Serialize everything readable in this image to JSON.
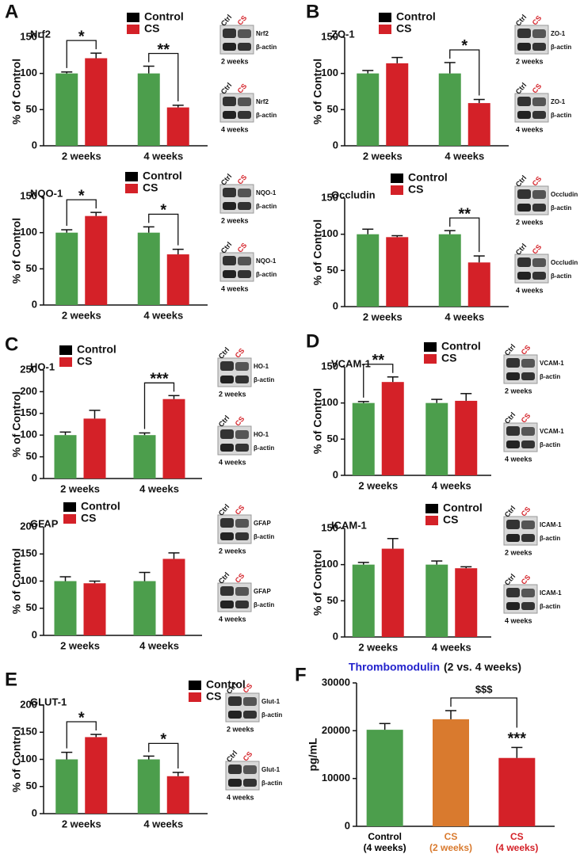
{
  "chart_data": [
    {
      "type": "bar",
      "panel": "A",
      "title": "Nrf2",
      "ylabel": "% of Control",
      "categories": [
        "2 weeks",
        "4 weeks"
      ],
      "series": [
        {
          "name": "Control",
          "color": "#4c9e4c",
          "legend_color": "#000000",
          "values": [
            100,
            100
          ],
          "errors": [
            2,
            10
          ]
        },
        {
          "name": "CS",
          "color": "#d42128",
          "legend_color": "#d42128",
          "values": [
            121,
            53
          ],
          "errors": [
            7,
            3
          ]
        }
      ],
      "ylim": [
        0,
        150
      ],
      "yticks": [
        0,
        50,
        100,
        150
      ],
      "annotations": [
        {
          "text": "*",
          "category": 0
        },
        {
          "text": "**",
          "category": 1
        }
      ],
      "blots": [
        {
          "ctrl": "Ctrl",
          "cs": "CS",
          "protein": "Nrf2",
          "loading": "β-actin",
          "period": "2 weeks"
        },
        {
          "ctrl": "Ctrl",
          "cs": "CS",
          "protein": "Nrf2",
          "loading": "β-actin",
          "period": "4 weeks"
        }
      ]
    },
    {
      "type": "bar",
      "title": "NQO-1",
      "ylabel": "% of Control",
      "categories": [
        "2 weeks",
        "4 weeks"
      ],
      "series": [
        {
          "name": "Control",
          "color": "#4c9e4c",
          "legend_color": "#000000",
          "values": [
            100,
            100
          ],
          "errors": [
            4,
            8
          ]
        },
        {
          "name": "CS",
          "color": "#d42128",
          "legend_color": "#d42128",
          "values": [
            123,
            70
          ],
          "errors": [
            5,
            7
          ]
        }
      ],
      "ylim": [
        0,
        150
      ],
      "yticks": [
        0,
        50,
        100,
        150
      ],
      "annotations": [
        {
          "text": "*",
          "category": 0
        },
        {
          "text": "*",
          "category": 1
        }
      ],
      "blots": [
        {
          "ctrl": "Ctrl",
          "cs": "CS",
          "protein": "NQO-1",
          "loading": "β-actin",
          "period": "2 weeks"
        },
        {
          "ctrl": "Ctrl",
          "cs": "CS",
          "protein": "NQO-1",
          "loading": "β-actin",
          "period": "4 weeks"
        }
      ]
    },
    {
      "type": "bar",
      "panel": "B",
      "title": "ZO-1",
      "ylabel": "% of Control",
      "categories": [
        "2 weeks",
        "4 weeks"
      ],
      "series": [
        {
          "name": "Control",
          "color": "#4c9e4c",
          "legend_color": "#000000",
          "values": [
            100,
            100
          ],
          "errors": [
            4,
            15
          ]
        },
        {
          "name": "CS",
          "color": "#d42128",
          "legend_color": "#d42128",
          "values": [
            114,
            59
          ],
          "errors": [
            8,
            5
          ]
        }
      ],
      "ylim": [
        0,
        150
      ],
      "yticks": [
        0,
        50,
        100,
        150
      ],
      "annotations": [
        {
          "text": "*",
          "category": 1
        }
      ],
      "blots": [
        {
          "ctrl": "Ctrl",
          "cs": "CS",
          "protein": "ZO-1",
          "loading": "β-actin",
          "period": "2 weeks"
        },
        {
          "ctrl": "Ctrl",
          "cs": "CS",
          "protein": "ZO-1",
          "loading": "β-actin",
          "period": "4 weeks"
        }
      ]
    },
    {
      "type": "bar",
      "title": "Occludin",
      "ylabel": "% of Control",
      "categories": [
        "2 weeks",
        "4 weeks"
      ],
      "series": [
        {
          "name": "Control",
          "color": "#4c9e4c",
          "legend_color": "#000000",
          "values": [
            100,
            100
          ],
          "errors": [
            7,
            5
          ]
        },
        {
          "name": "CS",
          "color": "#d42128",
          "legend_color": "#d42128",
          "values": [
            96,
            61
          ],
          "errors": [
            2,
            9
          ]
        }
      ],
      "ylim": [
        0,
        150
      ],
      "yticks": [
        0,
        50,
        100,
        150
      ],
      "annotations": [
        {
          "text": "**",
          "category": 1
        }
      ],
      "blots": [
        {
          "ctrl": "Ctrl",
          "cs": "CS",
          "protein": "Occludin",
          "loading": "β-actin",
          "period": "2 weeks"
        },
        {
          "ctrl": "Ctrl",
          "cs": "CS",
          "protein": "Occludin",
          "loading": "β-actin",
          "period": "4 weeks"
        }
      ]
    },
    {
      "type": "bar",
      "panel": "C",
      "title": "HO-1",
      "ylabel": "% of Control",
      "categories": [
        "2 weeks",
        "4 weeks"
      ],
      "series": [
        {
          "name": "Control",
          "color": "#4c9e4c",
          "legend_color": "#000000",
          "values": [
            100,
            100
          ],
          "errors": [
            7,
            5
          ]
        },
        {
          "name": "CS",
          "color": "#d42128",
          "legend_color": "#d42128",
          "values": [
            138,
            183
          ],
          "errors": [
            19,
            8
          ]
        }
      ],
      "ylim": [
        0,
        250
      ],
      "yticks": [
        0,
        50,
        100,
        150,
        200,
        250
      ],
      "annotations": [
        {
          "text": "***",
          "category": 1
        }
      ],
      "blots": [
        {
          "ctrl": "Ctrl",
          "cs": "CS",
          "protein": "HO-1",
          "loading": "β-actin",
          "period": "2 weeks"
        },
        {
          "ctrl": "Ctrl",
          "cs": "CS",
          "protein": "HO-1",
          "loading": "β-actin",
          "period": "4 weeks"
        }
      ]
    },
    {
      "type": "bar",
      "title": "GFAP",
      "ylabel": "% of Control",
      "categories": [
        "2 weeks",
        "4 weeks"
      ],
      "series": [
        {
          "name": "Control",
          "color": "#4c9e4c",
          "legend_color": "#000000",
          "values": [
            100,
            100
          ],
          "errors": [
            8,
            16
          ]
        },
        {
          "name": "CS",
          "color": "#d42128",
          "legend_color": "#d42128",
          "values": [
            96,
            141
          ],
          "errors": [
            4,
            11
          ]
        }
      ],
      "ylim": [
        0,
        200
      ],
      "yticks": [
        0,
        50,
        100,
        150,
        200
      ],
      "annotations": [],
      "blots": [
        {
          "ctrl": "Ctrl",
          "cs": "CS",
          "protein": "GFAP",
          "loading": "β-actin",
          "period": "2 weeks"
        },
        {
          "ctrl": "Ctrl",
          "cs": "CS",
          "protein": "GFAP",
          "loading": "β-actin",
          "period": "4 weeks"
        }
      ]
    },
    {
      "type": "bar",
      "panel": "D",
      "title": "VCAM-1",
      "ylabel": "% of Control",
      "categories": [
        "2 weeks",
        "4 weeks"
      ],
      "series": [
        {
          "name": "Control",
          "color": "#4c9e4c",
          "legend_color": "#000000",
          "values": [
            100,
            100
          ],
          "errors": [
            2,
            5
          ]
        },
        {
          "name": "CS",
          "color": "#d42128",
          "legend_color": "#d42128",
          "values": [
            129,
            103
          ],
          "errors": [
            7,
            10
          ]
        }
      ],
      "ylim": [
        0,
        150
      ],
      "yticks": [
        0,
        50,
        100,
        150
      ],
      "annotations": [
        {
          "text": "**",
          "category": 0
        }
      ],
      "blots": [
        {
          "ctrl": "Ctrl",
          "cs": "CS",
          "protein": "VCAM-1",
          "loading": "β-actin",
          "period": "2 weeks"
        },
        {
          "ctrl": "Ctrl",
          "cs": "CS",
          "protein": "VCAM-1",
          "loading": "β-actin",
          "period": "4 weeks"
        }
      ]
    },
    {
      "type": "bar",
      "title": "ICAM-1",
      "ylabel": "% of Control",
      "categories": [
        "2 weeks",
        "4 weeks"
      ],
      "series": [
        {
          "name": "Control",
          "color": "#4c9e4c",
          "legend_color": "#000000",
          "values": [
            100,
            100
          ],
          "errors": [
            3,
            5
          ]
        },
        {
          "name": "CS",
          "color": "#d42128",
          "legend_color": "#d42128",
          "values": [
            122,
            95
          ],
          "errors": [
            14,
            2
          ]
        }
      ],
      "ylim": [
        0,
        150
      ],
      "yticks": [
        0,
        50,
        100,
        150
      ],
      "annotations": [],
      "blots": [
        {
          "ctrl": "Ctrl",
          "cs": "CS",
          "protein": "ICAM-1",
          "loading": "β-actin",
          "period": "2 weeks"
        },
        {
          "ctrl": "Ctrl",
          "cs": "CS",
          "protein": "ICAM-1",
          "loading": "β-actin",
          "period": "4 weeks"
        }
      ]
    },
    {
      "type": "bar",
      "panel": "E",
      "title": "GLUT-1",
      "ylabel": "% of Control",
      "categories": [
        "2 weeks",
        "4 weeks"
      ],
      "series": [
        {
          "name": "Control",
          "color": "#4c9e4c",
          "legend_color": "#000000",
          "values": [
            100,
            100
          ],
          "errors": [
            13,
            6
          ]
        },
        {
          "name": "CS",
          "color": "#d42128",
          "legend_color": "#d42128",
          "values": [
            141,
            69
          ],
          "errors": [
            5,
            7
          ]
        }
      ],
      "ylim": [
        0,
        200
      ],
      "yticks": [
        0,
        50,
        100,
        150,
        200
      ],
      "annotations": [
        {
          "text": "*",
          "category": 0
        },
        {
          "text": "*",
          "category": 1
        }
      ],
      "blots": [
        {
          "ctrl": "Ctrl",
          "cs": "CS",
          "protein": "Glut-1",
          "loading": "β-actin",
          "period": "2 weeks"
        },
        {
          "ctrl": "Ctrl",
          "cs": "CS",
          "protein": "Glut-1",
          "loading": "β-actin",
          "period": "4 weeks"
        }
      ]
    },
    {
      "type": "bar",
      "panel": "F",
      "title": "Thrombomodulin",
      "title_color": "#2222cc",
      "subtitle": "(2 vs. 4 weeks)",
      "ylabel": "pg/mL",
      "categories": [
        [
          "Control",
          "(4 weeks)"
        ],
        [
          "CS",
          "(2 weeks)"
        ],
        [
          "CS",
          "(4 weeks)"
        ]
      ],
      "colors": [
        "#4c9e4c",
        "#d97a2e",
        "#d42128"
      ],
      "label_colors": [
        "#000000",
        "#d97a2e",
        "#d42128"
      ],
      "values": [
        20200,
        22400,
        14300
      ],
      "errors": [
        1300,
        1800,
        2200
      ],
      "ylim": [
        0,
        30000
      ],
      "yticks": [
        0,
        10000,
        20000,
        30000
      ],
      "annotations": [
        {
          "text": "$$$",
          "bracket": [
            1,
            2
          ]
        },
        {
          "text": "***",
          "bar": 2
        }
      ]
    }
  ]
}
